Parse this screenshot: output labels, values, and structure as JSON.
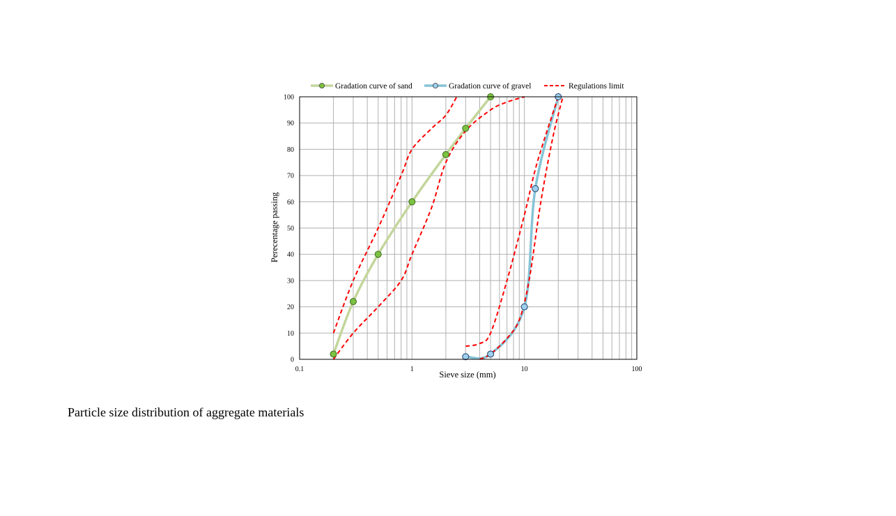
{
  "caption": "Particle size distribution of aggregate materials",
  "chart_data": {
    "type": "line",
    "x_scale": "log",
    "xlim": [
      0.1,
      100
    ],
    "ylim": [
      0,
      100
    ],
    "x_ticks": [
      0.1,
      1,
      10,
      100
    ],
    "x_tick_labels": [
      "0.1",
      "1",
      "10",
      "100"
    ],
    "y_ticks": [
      0,
      10,
      20,
      30,
      40,
      50,
      60,
      70,
      80,
      90,
      100
    ],
    "y_tick_labels": [
      "0",
      "10",
      "20",
      "30",
      "40",
      "50",
      "60",
      "70",
      "80",
      "90",
      "100"
    ],
    "xlabel": "Sieve size (mm)",
    "ylabel": "Perecentage passing",
    "grid": true,
    "legend_position": "top",
    "series": [
      {
        "name": "Gradation curve of sand",
        "color": "#c3d69b",
        "marker_color": "#7cc242",
        "style": "solid-marker",
        "x": [
          0.2,
          0.3,
          0.5,
          1,
          2,
          3,
          5
        ],
        "y": [
          2,
          22,
          40,
          60,
          78,
          88,
          100
        ]
      },
      {
        "name": "Gradation curve of gravel",
        "color": "#86c4d6",
        "marker_color": "#9ed0ee",
        "style": "solid-marker",
        "x": [
          3,
          5,
          10,
          12.5,
          20
        ],
        "y": [
          1,
          2,
          20,
          65,
          100
        ]
      },
      {
        "name": "Regulations limit",
        "color": "#ff0000",
        "style": "dashed",
        "lines": [
          {
            "x": [
              0.2,
              0.3,
              0.5,
              0.8,
              1,
              1.5,
              2,
              2.5
            ],
            "y": [
              10,
              30,
              50,
              70,
              80,
              88,
              93,
              100
            ]
          },
          {
            "x": [
              0.2,
              0.3,
              0.5,
              0.8,
              1,
              1.5,
              2,
              3,
              5,
              7,
              10
            ],
            "y": [
              0,
              10,
              20,
              30,
              40,
              58,
              75,
              87,
              95,
              98,
              100
            ]
          },
          {
            "x": [
              3,
              4,
              5,
              7,
              10,
              13,
              20
            ],
            "y": [
              5,
              6,
              10,
              30,
              55,
              75,
              100
            ]
          },
          {
            "x": [
              4,
              5,
              7,
              9,
              11,
              14,
              18,
              22
            ],
            "y": [
              0,
              2,
              8,
              15,
              30,
              60,
              85,
              100
            ]
          }
        ]
      }
    ]
  }
}
